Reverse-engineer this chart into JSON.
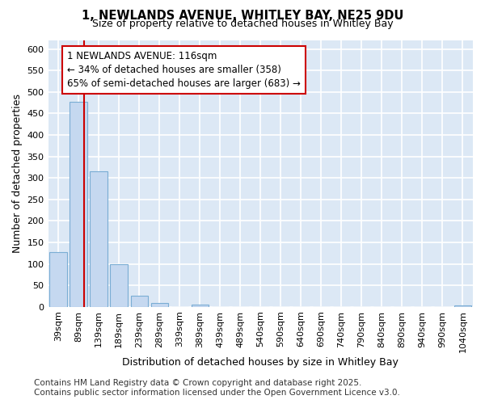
{
  "title_line1": "1, NEWLANDS AVENUE, WHITLEY BAY, NE25 9DU",
  "title_line2": "Size of property relative to detached houses in Whitley Bay",
  "xlabel": "Distribution of detached houses by size in Whitley Bay",
  "ylabel": "Number of detached properties",
  "categories": [
    "39sqm",
    "89sqm",
    "139sqm",
    "189sqm",
    "239sqm",
    "289sqm",
    "339sqm",
    "389sqm",
    "439sqm",
    "489sqm",
    "540sqm",
    "590sqm",
    "640sqm",
    "690sqm",
    "740sqm",
    "790sqm",
    "840sqm",
    "890sqm",
    "940sqm",
    "990sqm",
    "1040sqm"
  ],
  "values": [
    128,
    477,
    315,
    99,
    25,
    9,
    0,
    5,
    0,
    0,
    0,
    0,
    0,
    0,
    0,
    0,
    0,
    0,
    0,
    0,
    3
  ],
  "bar_color": "#c5d8f0",
  "bar_edgecolor": "#7aadd4",
  "plot_bg_color": "#dce8f5",
  "fig_bg_color": "#ffffff",
  "grid_color": "#ffffff",
  "red_line_x": 1.27,
  "annotation_text": "1 NEWLANDS AVENUE: 116sqm\n← 34% of detached houses are smaller (358)\n65% of semi-detached houses are larger (683) →",
  "annotation_box_facecolor": "#ffffff",
  "annotation_box_edgecolor": "#cc0000",
  "ylim": [
    0,
    620
  ],
  "yticks": [
    0,
    50,
    100,
    150,
    200,
    250,
    300,
    350,
    400,
    450,
    500,
    550,
    600
  ],
  "footer_line1": "Contains HM Land Registry data © Crown copyright and database right 2025.",
  "footer_line2": "Contains public sector information licensed under the Open Government Licence v3.0.",
  "title_fontsize": 10.5,
  "subtitle_fontsize": 9,
  "axis_label_fontsize": 9,
  "tick_fontsize": 8,
  "annotation_fontsize": 8.5,
  "footer_fontsize": 7.5
}
